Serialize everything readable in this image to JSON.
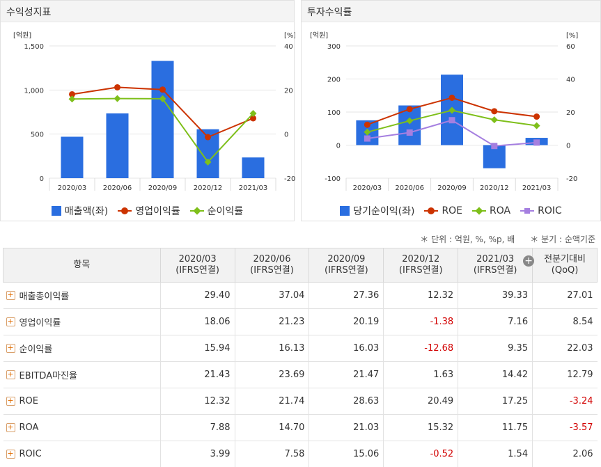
{
  "panels": {
    "left_title": "수익성지표",
    "right_title": "투자수익률"
  },
  "chart_data": [
    {
      "type": "bar",
      "title": "수익성지표",
      "categories": [
        "2020/03",
        "2020/06",
        "2020/09",
        "2020/12",
        "2021/03"
      ],
      "y_left_unit": "[억원]",
      "y_right_unit": "[%]",
      "ylim_left": [
        0,
        1500
      ],
      "ylim_right": [
        -20,
        40
      ],
      "y_left_ticks": [
        "0",
        "500",
        "1,000",
        "1,500"
      ],
      "y_right_ticks": [
        "-20",
        "0",
        "20",
        "40"
      ],
      "series": [
        {
          "name": "매출액(좌)",
          "kind": "bar",
          "axis": "left",
          "color": "#2a6ee0",
          "values": [
            470,
            735,
            1330,
            555,
            235
          ]
        },
        {
          "name": "영업이익률",
          "kind": "line",
          "axis": "right",
          "marker": "circle",
          "color": "#cc3300",
          "values": [
            18.06,
            21.23,
            20.19,
            -1.38,
            7.16
          ]
        },
        {
          "name": "순이익률",
          "kind": "line",
          "axis": "right",
          "marker": "diamond",
          "color": "#7ebf1a",
          "values": [
            15.94,
            16.13,
            16.03,
            -12.68,
            9.35
          ]
        }
      ],
      "grid": true,
      "legend": "bottom"
    },
    {
      "type": "bar",
      "title": "투자수익률",
      "categories": [
        "2020/03",
        "2020/06",
        "2020/09",
        "2020/12",
        "2021/03"
      ],
      "y_left_unit": "[억원]",
      "y_right_unit": "[%]",
      "ylim_left": [
        -100,
        300
      ],
      "ylim_right": [
        -20,
        60
      ],
      "y_left_ticks": [
        "-100",
        "0",
        "100",
        "200",
        "300"
      ],
      "y_right_ticks": [
        "-20",
        "0",
        "20",
        "40",
        "60"
      ],
      "series": [
        {
          "name": "당기순이익(좌)",
          "kind": "bar",
          "axis": "left",
          "color": "#2a6ee0",
          "values": [
            75,
            120,
            213,
            -70,
            22
          ]
        },
        {
          "name": "ROE",
          "kind": "line",
          "axis": "right",
          "marker": "circle",
          "color": "#cc3300",
          "values": [
            12.32,
            21.74,
            28.63,
            20.49,
            17.25
          ]
        },
        {
          "name": "ROA",
          "kind": "line",
          "axis": "right",
          "marker": "diamond",
          "color": "#7ebf1a",
          "values": [
            7.88,
            14.7,
            21.03,
            15.32,
            11.75
          ]
        },
        {
          "name": "ROIC",
          "kind": "line",
          "axis": "right",
          "marker": "square",
          "color": "#a57fe0",
          "values": [
            3.99,
            7.58,
            15.06,
            -0.52,
            1.54
          ]
        }
      ],
      "grid": true,
      "legend": "bottom"
    }
  ],
  "notes": {
    "unit": "＊ 단위 : 억원, %, %p, 배",
    "quarter": "＊ 분기 : 순액기준"
  },
  "table": {
    "header_item": "항목",
    "columns": [
      {
        "period": "2020/03",
        "basis": "(IFRS연결)"
      },
      {
        "period": "2020/06",
        "basis": "(IFRS연결)"
      },
      {
        "period": "2020/09",
        "basis": "(IFRS연결)"
      },
      {
        "period": "2020/12",
        "basis": "(IFRS연결)"
      },
      {
        "period": "2021/03",
        "basis": "(IFRS연결)"
      }
    ],
    "qoq_title": "전분기대비",
    "qoq_sub": "(QoQ)",
    "more_icon": "plus-circle-icon",
    "expand_icon": "plus-box-icon",
    "negative_color": "#d20000",
    "rows": [
      {
        "label": "매출총이익률",
        "values": [
          "29.40",
          "37.04",
          "27.36",
          "12.32",
          "39.33"
        ],
        "qoq": "27.01"
      },
      {
        "label": "영업이익률",
        "values": [
          "18.06",
          "21.23",
          "20.19",
          "-1.38",
          "7.16"
        ],
        "qoq": "8.54"
      },
      {
        "label": "순이익률",
        "values": [
          "15.94",
          "16.13",
          "16.03",
          "-12.68",
          "9.35"
        ],
        "qoq": "22.03"
      },
      {
        "label": "EBITDA마진율",
        "values": [
          "21.43",
          "23.69",
          "21.47",
          "1.63",
          "14.42"
        ],
        "qoq": "12.79"
      },
      {
        "label": "ROE",
        "values": [
          "12.32",
          "21.74",
          "28.63",
          "20.49",
          "17.25"
        ],
        "qoq": "-3.24"
      },
      {
        "label": "ROA",
        "values": [
          "7.88",
          "14.70",
          "21.03",
          "15.32",
          "11.75"
        ],
        "qoq": "-3.57"
      },
      {
        "label": "ROIC",
        "values": [
          "3.99",
          "7.58",
          "15.06",
          "-0.52",
          "1.54"
        ],
        "qoq": "2.06"
      }
    ]
  }
}
